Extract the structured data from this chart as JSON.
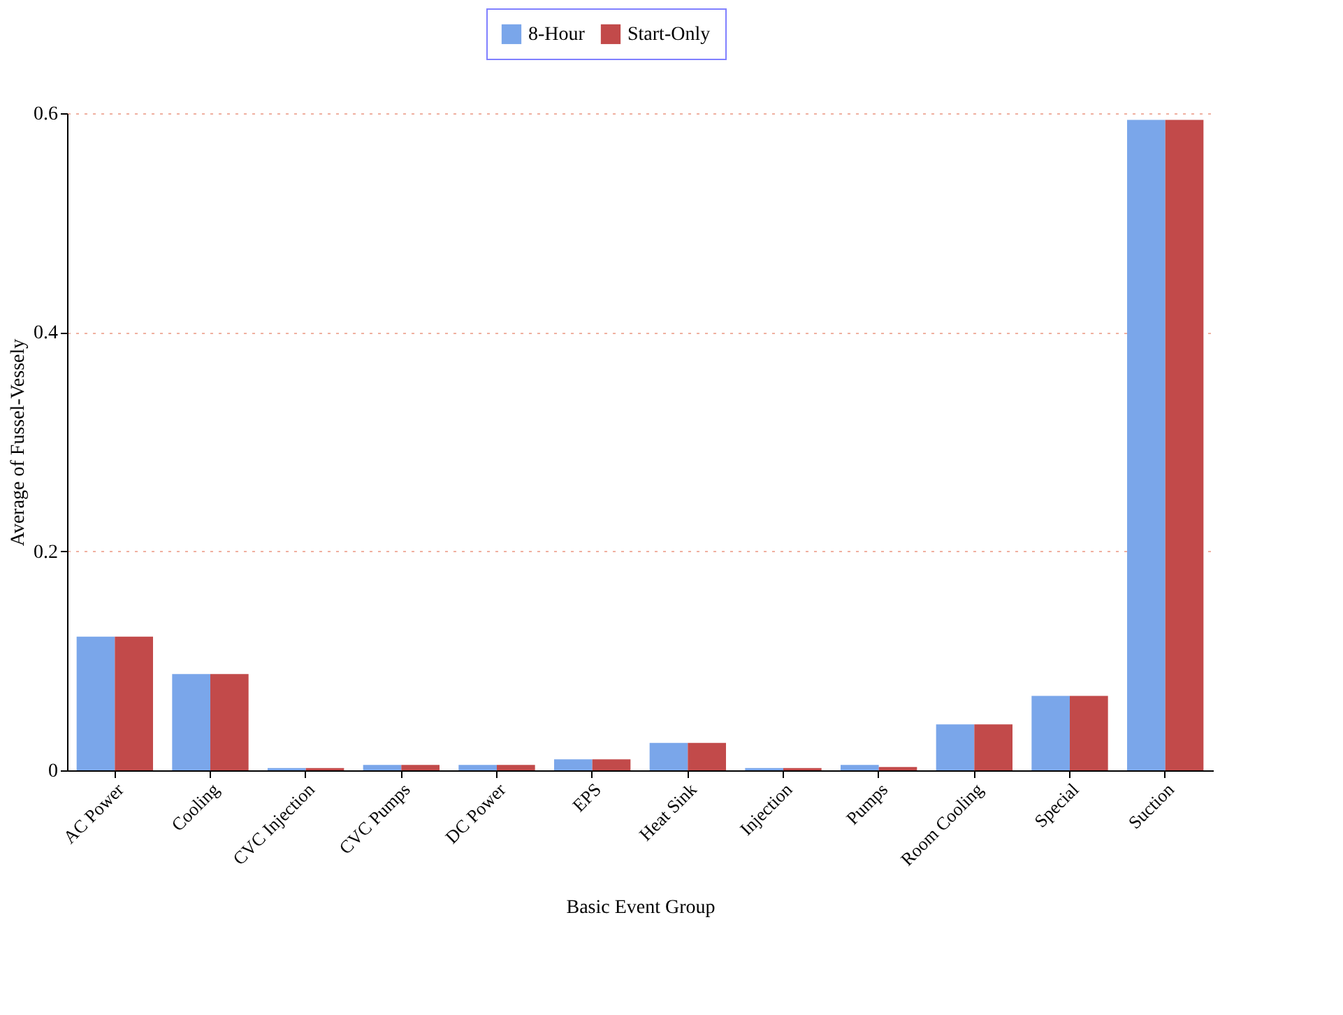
{
  "chart_data": {
    "type": "bar",
    "xlabel": "Basic Event Group",
    "ylabel": "Average of Fussel-Vessely",
    "categories": [
      "AC Power",
      "Cooling",
      "CVC Injection",
      "CVC Pumps",
      "DC Power",
      "EPS",
      "Heat Sink",
      "Injection",
      "Pumps",
      "Room Cooling",
      "Special",
      "Suction"
    ],
    "series": [
      {
        "name": "8-Hour",
        "color": "#7aa6ea",
        "values": [
          0.122,
          0.088,
          0.002,
          0.005,
          0.005,
          0.01,
          0.025,
          0.002,
          0.005,
          0.042,
          0.068,
          0.594
        ]
      },
      {
        "name": "Start-Only",
        "color": "#c24a4a",
        "values": [
          0.122,
          0.088,
          0.002,
          0.005,
          0.005,
          0.01,
          0.025,
          0.002,
          0.003,
          0.042,
          0.068,
          0.594
        ]
      }
    ],
    "ylim": [
      0,
      0.6
    ],
    "yticks": [
      0,
      0.2,
      0.4,
      0.6
    ],
    "grid": "y",
    "legend": "top"
  }
}
